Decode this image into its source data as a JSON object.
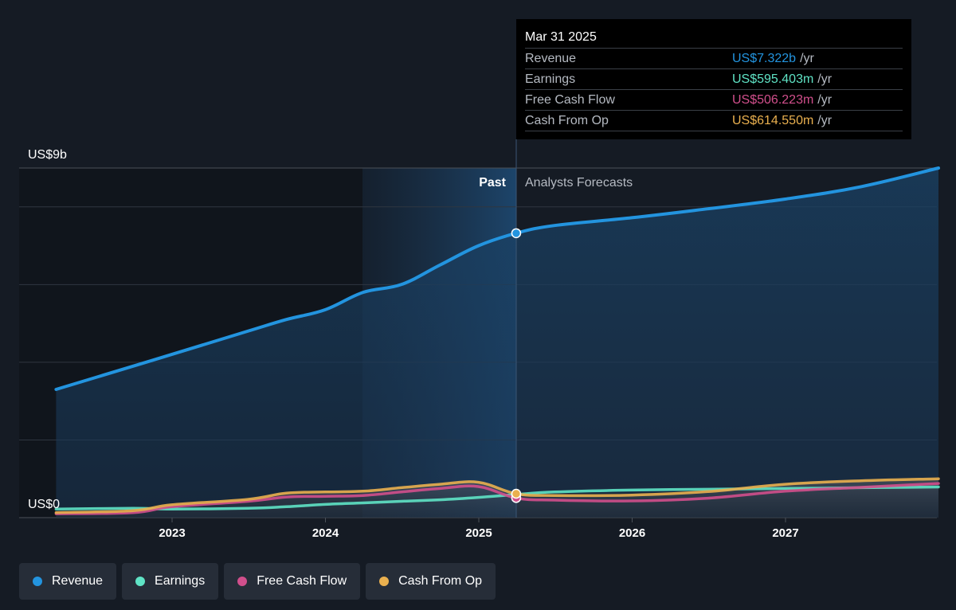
{
  "chart_data": {
    "type": "line",
    "y_axis": {
      "top_label": "US$9b",
      "bottom_label": "US$0",
      "ylim": [
        0,
        9
      ]
    },
    "x_ticks": [
      "2023",
      "2024",
      "2025",
      "2026",
      "2027"
    ],
    "regions": {
      "past_label": "Past",
      "forecast_label": "Analysts Forecasts"
    },
    "series": [
      {
        "name": "Revenue",
        "color": "#2394df",
        "points": [
          [
            "2022-03-31",
            3.3
          ],
          [
            "2022-09-30",
            3.9
          ],
          [
            "2022-12-31",
            4.2
          ],
          [
            "2023-06-30",
            4.8
          ],
          [
            "2023-09-30",
            5.1
          ],
          [
            "2023-12-31",
            5.35
          ],
          [
            "2024-03-31",
            5.8
          ],
          [
            "2024-06-30",
            6.0
          ],
          [
            "2024-09-30",
            6.5
          ],
          [
            "2024-12-31",
            7.0
          ],
          [
            "2025-03-31",
            7.322
          ],
          [
            "2025-06-30",
            7.52
          ],
          [
            "2025-12-31",
            7.72
          ],
          [
            "2026-06-30",
            7.95
          ],
          [
            "2026-12-31",
            8.2
          ],
          [
            "2027-06-30",
            8.52
          ],
          [
            "2027-12-31",
            9.0
          ]
        ]
      },
      {
        "name": "Earnings",
        "color": "#5fe3c5",
        "points": [
          [
            "2022-03-31",
            0.22
          ],
          [
            "2022-09-30",
            0.24
          ],
          [
            "2022-12-31",
            0.22
          ],
          [
            "2023-06-30",
            0.24
          ],
          [
            "2023-09-30",
            0.28
          ],
          [
            "2023-12-31",
            0.34
          ],
          [
            "2024-03-31",
            0.38
          ],
          [
            "2024-06-30",
            0.42
          ],
          [
            "2024-09-30",
            0.46
          ],
          [
            "2024-12-31",
            0.52
          ],
          [
            "2025-03-31",
            0.595
          ],
          [
            "2025-06-30",
            0.66
          ],
          [
            "2025-12-31",
            0.71
          ],
          [
            "2026-06-30",
            0.73
          ],
          [
            "2026-12-31",
            0.75
          ],
          [
            "2027-06-30",
            0.77
          ],
          [
            "2027-12-31",
            0.79
          ]
        ]
      },
      {
        "name": "Free Cash Flow",
        "color": "#d14f8c",
        "points": [
          [
            "2022-03-31",
            0.1
          ],
          [
            "2022-09-30",
            0.13
          ],
          [
            "2022-12-31",
            0.28
          ],
          [
            "2023-06-30",
            0.42
          ],
          [
            "2023-09-30",
            0.53
          ],
          [
            "2023-12-31",
            0.55
          ],
          [
            "2024-03-31",
            0.57
          ],
          [
            "2024-06-30",
            0.66
          ],
          [
            "2024-09-30",
            0.75
          ],
          [
            "2024-12-31",
            0.8
          ],
          [
            "2025-03-31",
            0.506
          ],
          [
            "2025-06-30",
            0.45
          ],
          [
            "2025-12-31",
            0.43
          ],
          [
            "2026-06-30",
            0.5
          ],
          [
            "2026-12-31",
            0.68
          ],
          [
            "2027-06-30",
            0.78
          ],
          [
            "2027-12-31",
            0.88
          ]
        ]
      },
      {
        "name": "Cash From Op",
        "color": "#eab04f",
        "points": [
          [
            "2022-03-31",
            0.13
          ],
          [
            "2022-09-30",
            0.18
          ],
          [
            "2022-12-31",
            0.33
          ],
          [
            "2023-06-30",
            0.47
          ],
          [
            "2023-09-30",
            0.63
          ],
          [
            "2023-12-31",
            0.66
          ],
          [
            "2024-03-31",
            0.68
          ],
          [
            "2024-06-30",
            0.77
          ],
          [
            "2024-09-30",
            0.86
          ],
          [
            "2024-12-31",
            0.91
          ],
          [
            "2025-03-31",
            0.615
          ],
          [
            "2025-06-30",
            0.57
          ],
          [
            "2025-12-31",
            0.58
          ],
          [
            "2026-06-30",
            0.67
          ],
          [
            "2026-12-31",
            0.86
          ],
          [
            "2027-06-30",
            0.95
          ],
          [
            "2027-12-31",
            1.0
          ]
        ]
      }
    ],
    "grid": true
  },
  "tooltip": {
    "date": "Mar 31 2025",
    "rows": [
      {
        "label": "Revenue",
        "value": "US$7.322b",
        "unit": "/yr",
        "color": "#2394df"
      },
      {
        "label": "Earnings",
        "value": "US$595.403m",
        "unit": "/yr",
        "color": "#5fe3c5"
      },
      {
        "label": "Free Cash Flow",
        "value": "US$506.223m",
        "unit": "/yr",
        "color": "#d14f8c"
      },
      {
        "label": "Cash From Op",
        "value": "US$614.550m",
        "unit": "/yr",
        "color": "#eab04f"
      }
    ]
  },
  "legend": [
    {
      "label": "Revenue",
      "color": "#2394df"
    },
    {
      "label": "Earnings",
      "color": "#5fe3c5"
    },
    {
      "label": "Free Cash Flow",
      "color": "#d14f8c"
    },
    {
      "label": "Cash From Op",
      "color": "#eab04f"
    }
  ]
}
